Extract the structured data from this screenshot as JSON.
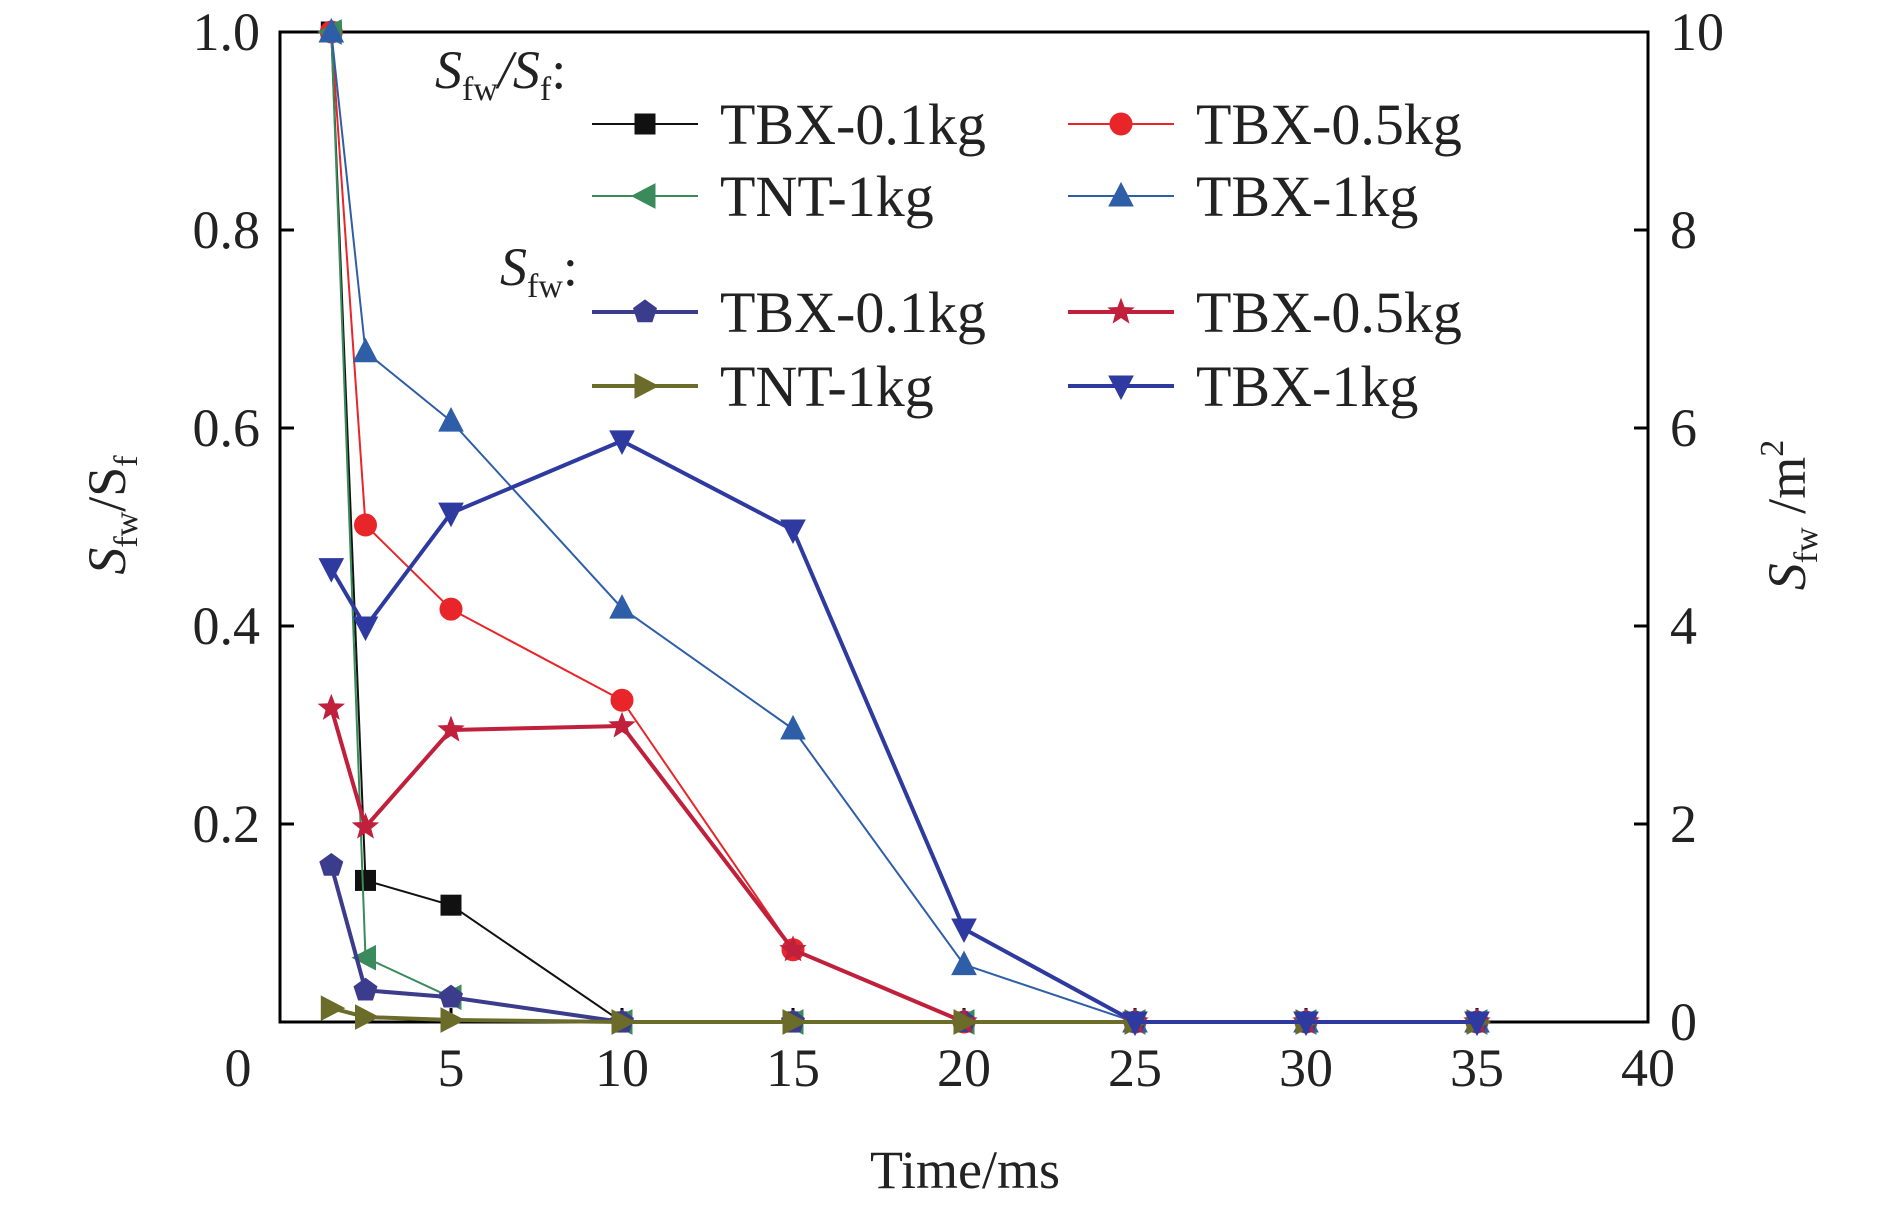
{
  "chart_data": {
    "type": "line",
    "xlabel": "Time/ms",
    "x_ticks": [
      "0",
      "5",
      "10",
      "15",
      "20",
      "25",
      "30",
      "35",
      "40"
    ],
    "xlim": [
      0,
      40
    ],
    "left_axis": {
      "label_main": "S",
      "label_sub1": "fw",
      "label_mid": "/S",
      "label_sub2": "f",
      "ylim": [
        0,
        1.0
      ],
      "tick_labels": [
        "0.2",
        "0.4",
        "0.6",
        "0.8",
        "1.0"
      ],
      "tick_values": [
        0.2,
        0.4,
        0.6,
        0.8,
        1.0
      ]
    },
    "right_axis": {
      "label_main": "S",
      "label_sub": "fw",
      "label_rest": " /m",
      "label_sup": "2",
      "ylim": [
        0,
        10
      ],
      "tick_labels": [
        "0",
        "2",
        "4",
        "6",
        "8",
        "10"
      ],
      "tick_values": [
        0,
        2,
        4,
        6,
        8,
        10
      ]
    },
    "legend_groups": [
      {
        "header_main": "S",
        "header_sub1": "fw",
        "header_mid": "/S",
        "header_sub2": "f",
        "header_end": ":"
      },
      {
        "header_main": "S",
        "header_sub1": "fw",
        "header_end": ":"
      }
    ],
    "series": [
      {
        "name": "TBX-0.1kg",
        "group": 0,
        "axis": "left",
        "marker": "square",
        "color": "#111111",
        "stroke": 2,
        "x": [
          1.5,
          2.5,
          5,
          10,
          15,
          20,
          25,
          30,
          35
        ],
        "y": [
          1.0,
          0.143,
          0.118,
          0,
          0,
          0,
          0,
          0,
          0
        ]
      },
      {
        "name": "TBX-0.5kg",
        "group": 0,
        "axis": "left",
        "marker": "circle",
        "color": "#e8262a",
        "stroke": 2,
        "x": [
          1.5,
          2.5,
          5,
          10,
          15,
          20,
          25,
          30,
          35
        ],
        "y": [
          1.0,
          0.502,
          0.417,
          0.325,
          0.073,
          0,
          0,
          0,
          0
        ]
      },
      {
        "name": "TNT-1kg",
        "group": 0,
        "axis": "left",
        "marker": "triangle-left",
        "color": "#3a8a5c",
        "stroke": 2,
        "x": [
          1.5,
          2.5,
          5,
          10,
          15,
          20,
          25,
          30,
          35
        ],
        "y": [
          1.0,
          0.065,
          0.025,
          0,
          0,
          0,
          0,
          0,
          0
        ]
      },
      {
        "name": "TBX-1kg",
        "group": 0,
        "axis": "left",
        "marker": "triangle-up",
        "color": "#2f5ea8",
        "stroke": 2,
        "x": [
          1.5,
          2.5,
          5,
          10,
          15,
          20,
          25,
          30,
          35
        ],
        "y": [
          1.0,
          0.677,
          0.607,
          0.418,
          0.296,
          0.058,
          0,
          0,
          0
        ]
      },
      {
        "name": "TBX-0.1kg",
        "group": 1,
        "axis": "right",
        "marker": "pentagon",
        "color": "#3c3c8c",
        "stroke": 4,
        "x": [
          1.5,
          2.5,
          5,
          10,
          15,
          20,
          25,
          30,
          35
        ],
        "y": [
          1.58,
          0.32,
          0.25,
          0,
          0,
          0,
          0,
          0,
          0
        ]
      },
      {
        "name": "TBX-0.5kg",
        "group": 1,
        "axis": "right",
        "marker": "star",
        "color": "#c0203c",
        "stroke": 4,
        "x": [
          1.5,
          2.5,
          5,
          10,
          15,
          20,
          25,
          30,
          35
        ],
        "y": [
          3.17,
          1.97,
          2.95,
          2.99,
          0.73,
          0,
          0,
          0,
          0
        ]
      },
      {
        "name": "TNT-1kg",
        "group": 1,
        "axis": "right",
        "marker": "triangle-right",
        "color": "#6b6b2a",
        "stroke": 4,
        "x": [
          1.5,
          2.5,
          5,
          10,
          15,
          20,
          25,
          30,
          35
        ],
        "y": [
          0.14,
          0.05,
          0.02,
          0,
          0,
          0,
          0,
          0,
          0
        ]
      },
      {
        "name": "TBX-1kg",
        "group": 1,
        "axis": "right",
        "marker": "triangle-down",
        "color": "#2e3aa0",
        "stroke": 4,
        "x": [
          1.5,
          2.5,
          5,
          10,
          15,
          20,
          25,
          30,
          35
        ],
        "y": [
          4.58,
          3.99,
          5.14,
          5.87,
          4.97,
          0.94,
          0,
          0,
          0
        ]
      }
    ]
  }
}
